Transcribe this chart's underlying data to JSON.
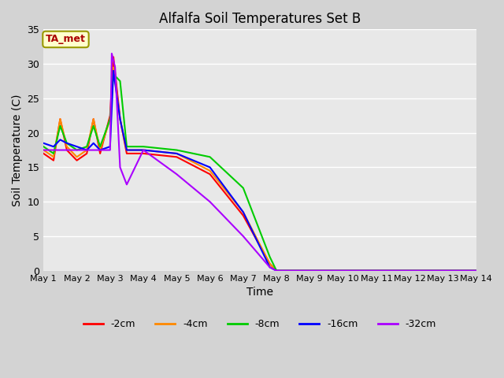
{
  "title": "Alfalfa Soil Temperatures Set B",
  "xlabel": "Time",
  "ylabel": "Soil Temperature (C)",
  "annotation": "TA_met",
  "xlim": [
    1,
    14
  ],
  "ylim": [
    0,
    35
  ],
  "yticks": [
    0,
    5,
    10,
    15,
    20,
    25,
    30,
    35
  ],
  "xtick_positions": [
    1,
    2,
    3,
    4,
    5,
    6,
    7,
    8,
    9,
    10,
    11,
    12,
    13,
    14
  ],
  "xtick_labels": [
    "May 1",
    "May 2",
    "May 3",
    "May 4",
    "May 5",
    "May 6",
    "May 7",
    "May 8",
    "May 9",
    "May 10",
    "May 11",
    "May 12",
    "May 13",
    "May 14"
  ],
  "fig_facecolor": "#d3d3d3",
  "axes_facecolor": "#e8e8e8",
  "grid_color": "#ffffff",
  "series": {
    "-2cm": {
      "color": "#ff0000",
      "x": [
        1.0,
        1.3,
        1.5,
        1.7,
        2.0,
        2.3,
        2.5,
        2.7,
        3.0,
        3.1,
        3.3,
        3.5,
        4.0,
        5.0,
        6.0,
        7.0,
        7.8,
        8.0,
        14.0
      ],
      "y": [
        17.0,
        16.0,
        22.0,
        17.5,
        16.0,
        17.0,
        22.0,
        17.0,
        22.5,
        31.0,
        22.0,
        17.0,
        17.0,
        16.5,
        14.0,
        8.0,
        1.0,
        0.0,
        0.0
      ]
    },
    "-4cm": {
      "color": "#ff8800",
      "x": [
        1.0,
        1.3,
        1.5,
        1.7,
        2.0,
        2.3,
        2.5,
        2.7,
        3.0,
        3.1,
        3.3,
        3.5,
        4.0,
        5.0,
        6.0,
        7.0,
        7.8,
        8.0,
        14.0
      ],
      "y": [
        17.5,
        16.5,
        22.0,
        18.0,
        16.5,
        17.5,
        22.0,
        17.5,
        22.0,
        29.5,
        22.0,
        17.5,
        17.5,
        17.0,
        14.5,
        8.5,
        1.0,
        0.0,
        0.0
      ]
    },
    "-8cm": {
      "color": "#00cc00",
      "x": [
        1.0,
        1.3,
        1.5,
        1.7,
        2.0,
        2.3,
        2.5,
        2.7,
        3.0,
        3.1,
        3.3,
        3.5,
        4.0,
        5.0,
        6.0,
        7.0,
        7.8,
        8.0,
        14.0
      ],
      "y": [
        18.0,
        17.0,
        21.0,
        18.5,
        17.5,
        18.0,
        21.0,
        18.0,
        22.0,
        28.5,
        27.5,
        18.0,
        18.0,
        17.5,
        16.5,
        12.0,
        2.0,
        0.0,
        0.0
      ]
    },
    "-16cm": {
      "color": "#0000ff",
      "x": [
        1.0,
        1.3,
        1.5,
        1.7,
        2.0,
        2.3,
        2.5,
        2.7,
        3.0,
        3.1,
        3.3,
        3.5,
        4.0,
        5.0,
        6.0,
        7.0,
        7.8,
        8.0,
        14.0
      ],
      "y": [
        18.5,
        18.0,
        19.0,
        18.5,
        18.0,
        17.5,
        18.5,
        17.5,
        18.0,
        29.0,
        22.0,
        17.5,
        17.5,
        17.0,
        15.0,
        8.5,
        0.5,
        0.0,
        0.0
      ]
    },
    "-32cm": {
      "color": "#aa00ff",
      "x": [
        1.0,
        1.3,
        1.5,
        1.7,
        2.0,
        2.3,
        2.5,
        2.7,
        3.0,
        3.05,
        3.15,
        3.3,
        3.5,
        4.0,
        5.0,
        6.0,
        7.0,
        7.8,
        8.0,
        14.0
      ],
      "y": [
        17.5,
        17.5,
        17.5,
        17.5,
        17.5,
        17.5,
        17.5,
        17.5,
        17.5,
        31.5,
        29.5,
        15.0,
        12.5,
        17.5,
        14.0,
        10.0,
        5.0,
        0.5,
        0.0,
        0.0
      ]
    }
  },
  "legend_order": [
    "-2cm",
    "-4cm",
    "-8cm",
    "-16cm",
    "-32cm"
  ]
}
